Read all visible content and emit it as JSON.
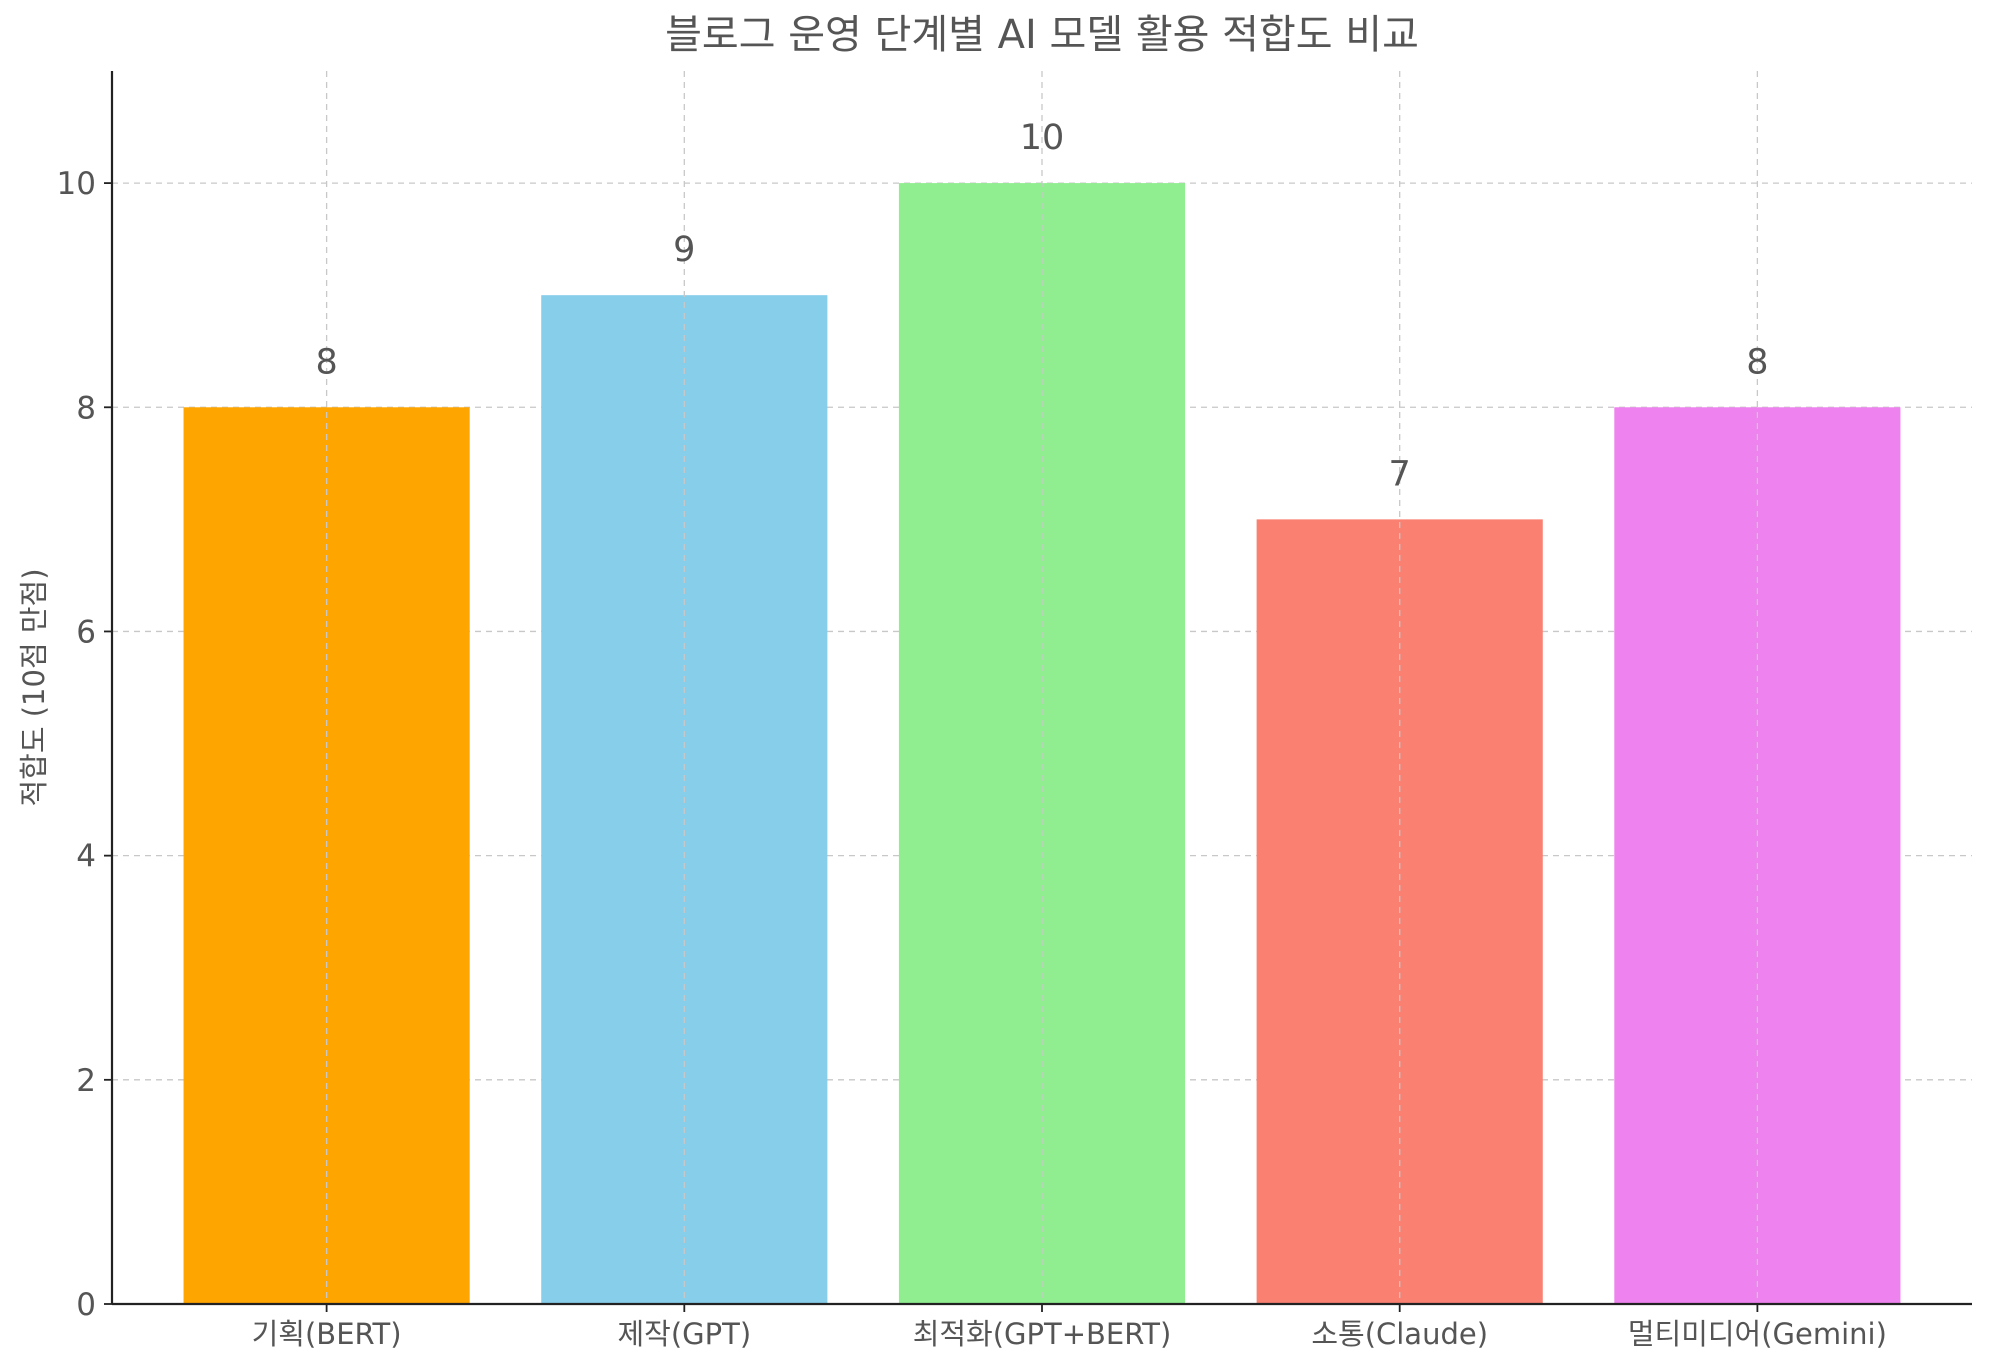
{
  "chart_data": {
    "type": "bar",
    "title": "블로그 운영 단계별 AI 모델 활용 적합도 비교",
    "xlabel": "",
    "ylabel": "적합도 (10점 만점)",
    "categories": [
      "기획(BERT)",
      "제작(GPT)",
      "최적화(GPT+BERT)",
      "소통(Claude)",
      "멀티미디어(Gemini)"
    ],
    "values": [
      8,
      9,
      10,
      7,
      8
    ],
    "value_labels": [
      "8",
      "9",
      "10",
      "7",
      "8"
    ],
    "colors": [
      "#FFA500",
      "#87CEEB",
      "#90EE90",
      "#FA8072",
      "#EE82EE"
    ],
    "ylim": [
      0,
      11
    ],
    "yticks": [
      0,
      2,
      4,
      6,
      8,
      10
    ],
    "ytick_labels": [
      "0",
      "2",
      "4",
      "6",
      "8",
      "10"
    ],
    "grid": true,
    "legend": false
  }
}
